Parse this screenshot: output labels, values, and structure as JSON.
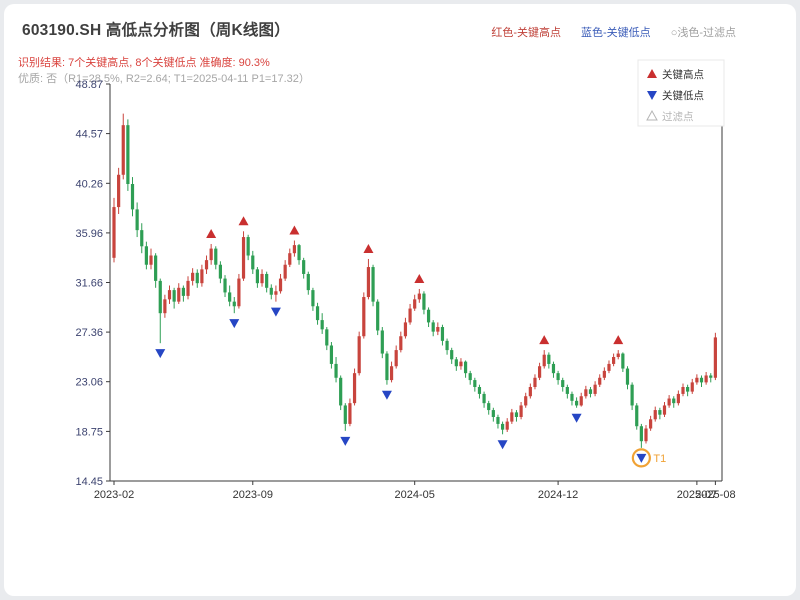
{
  "header": {
    "title": "603190.SH 高低点分析图（周K线图）",
    "legend_right": [
      {
        "label": "红色-关键高点",
        "color": "#bf4038"
      },
      {
        "label": "蓝色-关键低点",
        "color": "#3b5cb8"
      },
      {
        "label": "○浅色-过滤点",
        "color": "#9e9e9e"
      }
    ],
    "result_line": "识别结果: 7个关键高点, 8个关键低点  准确度: 90.3%",
    "result_color": "#d9433e",
    "quality_line": "优质: 否（R1=28.5%, R2=2.64; T1=2025-04-11 P1=17.32）"
  },
  "chart_data": {
    "type": "candlestick",
    "title": "603190.SH 高低点分析图（周K线图）",
    "frequency": "weekly",
    "ylim": [
      14.45,
      48.87
    ],
    "y_ticks": [
      14.45,
      18.75,
      23.06,
      27.36,
      31.66,
      35.96,
      40.26,
      44.57,
      48.87
    ],
    "x_ticks": [
      {
        "index": 0,
        "label": "2023-02"
      },
      {
        "index": 30,
        "label": "2023-09"
      },
      {
        "index": 65,
        "label": "2024-05"
      },
      {
        "index": 96,
        "label": "2024-12"
      },
      {
        "index": 126,
        "label": "2025-07"
      },
      {
        "index": 130,
        "label": "2025-08"
      }
    ],
    "in_chart_legend": [
      {
        "label": "关键高点",
        "marker": "up-triangle",
        "color": "#c92f2f",
        "text_color": "#333333"
      },
      {
        "label": "关键低点",
        "marker": "down-triangle",
        "color": "#2646c4",
        "text_color": "#333333"
      },
      {
        "label": "过滤点",
        "marker": "hollow-triangle",
        "color": "#b5b5b5",
        "text_color": "#b5b5b5"
      }
    ],
    "colors": {
      "up": "#c8443d",
      "down": "#2e9e54",
      "high_marker": "#c92f2f",
      "low_marker": "#2646c4",
      "t1_ring": "#f0a235",
      "axis": "#3a3a3a",
      "y_label": "#3d4470",
      "x_label": "#333333"
    },
    "candles": [
      [
        33.8,
        39.0,
        33.4,
        38.2
      ],
      [
        38.2,
        41.6,
        37.6,
        41.0
      ],
      [
        41.0,
        46.3,
        40.6,
        45.3
      ],
      [
        45.3,
        45.8,
        39.6,
        40.2
      ],
      [
        40.2,
        40.8,
        37.4,
        38.0
      ],
      [
        38.0,
        38.6,
        35.6,
        36.2
      ],
      [
        36.2,
        36.8,
        34.2,
        34.8
      ],
      [
        34.8,
        35.2,
        32.8,
        33.2
      ],
      [
        33.2,
        34.6,
        32.8,
        34.0
      ],
      [
        34.0,
        34.2,
        31.2,
        31.8
      ],
      [
        31.8,
        32.0,
        26.4,
        29.0
      ],
      [
        29.0,
        30.6,
        28.6,
        30.2
      ],
      [
        30.2,
        31.4,
        29.8,
        31.0
      ],
      [
        31.0,
        31.2,
        29.4,
        30.0
      ],
      [
        30.0,
        31.6,
        29.8,
        31.2
      ],
      [
        31.2,
        31.4,
        30.0,
        30.5
      ],
      [
        30.5,
        32.2,
        30.2,
        31.8
      ],
      [
        31.8,
        32.9,
        31.4,
        32.5
      ],
      [
        32.5,
        32.8,
        31.2,
        31.6
      ],
      [
        31.6,
        33.2,
        31.3,
        32.8
      ],
      [
        32.8,
        34.0,
        32.4,
        33.6
      ],
      [
        33.6,
        35.0,
        33.2,
        34.6
      ],
      [
        34.6,
        34.8,
        32.8,
        33.2
      ],
      [
        33.2,
        33.5,
        31.6,
        32.0
      ],
      [
        32.0,
        32.3,
        30.4,
        30.8
      ],
      [
        30.8,
        31.4,
        29.6,
        30.0
      ],
      [
        30.0,
        30.4,
        29.0,
        29.6
      ],
      [
        29.6,
        32.4,
        29.4,
        32.0
      ],
      [
        32.0,
        36.1,
        31.8,
        35.6
      ],
      [
        35.6,
        35.8,
        33.6,
        34.0
      ],
      [
        34.0,
        34.4,
        32.4,
        32.8
      ],
      [
        32.8,
        33.0,
        31.2,
        31.6
      ],
      [
        31.6,
        32.8,
        31.3,
        32.4
      ],
      [
        32.4,
        32.6,
        30.8,
        31.2
      ],
      [
        31.2,
        31.5,
        30.2,
        30.6
      ],
      [
        30.6,
        31.4,
        30.0,
        30.9
      ],
      [
        30.9,
        32.4,
        30.7,
        32.0
      ],
      [
        32.0,
        33.6,
        31.8,
        33.2
      ],
      [
        33.2,
        34.6,
        33.0,
        34.2
      ],
      [
        34.2,
        35.3,
        33.9,
        34.9
      ],
      [
        34.9,
        35.0,
        33.2,
        33.6
      ],
      [
        33.6,
        33.8,
        32.0,
        32.4
      ],
      [
        32.4,
        32.6,
        30.6,
        31.0
      ],
      [
        31.0,
        31.2,
        29.2,
        29.6
      ],
      [
        29.6,
        29.9,
        28.0,
        28.4
      ],
      [
        28.4,
        29.0,
        27.2,
        27.6
      ],
      [
        27.6,
        27.8,
        25.8,
        26.2
      ],
      [
        26.2,
        26.5,
        24.2,
        24.6
      ],
      [
        24.6,
        25.2,
        23.0,
        23.4
      ],
      [
        23.4,
        23.6,
        20.6,
        21.0
      ],
      [
        21.0,
        21.2,
        18.8,
        19.4
      ],
      [
        19.4,
        21.6,
        19.2,
        21.2
      ],
      [
        21.2,
        24.2,
        21.0,
        23.8
      ],
      [
        23.8,
        27.4,
        23.6,
        27.0
      ],
      [
        27.0,
        30.8,
        26.8,
        30.4
      ],
      [
        30.4,
        33.7,
        30.2,
        33.0
      ],
      [
        33.0,
        33.2,
        29.6,
        30.0
      ],
      [
        30.0,
        30.2,
        27.1,
        27.5
      ],
      [
        27.5,
        27.8,
        25.1,
        25.5
      ],
      [
        25.5,
        25.7,
        22.8,
        23.2
      ],
      [
        23.2,
        24.8,
        23.0,
        24.4
      ],
      [
        24.4,
        26.2,
        24.2,
        25.8
      ],
      [
        25.8,
        27.4,
        25.6,
        27.0
      ],
      [
        27.0,
        28.6,
        26.8,
        28.2
      ],
      [
        28.2,
        29.8,
        28.0,
        29.4
      ],
      [
        29.4,
        30.6,
        29.2,
        30.2
      ],
      [
        30.2,
        31.1,
        29.9,
        30.7
      ],
      [
        30.7,
        30.9,
        28.9,
        29.3
      ],
      [
        29.3,
        29.5,
        27.8,
        28.2
      ],
      [
        28.2,
        28.4,
        27.0,
        27.4
      ],
      [
        27.4,
        28.2,
        27.1,
        27.8
      ],
      [
        27.8,
        28.0,
        26.2,
        26.6
      ],
      [
        26.6,
        26.8,
        25.4,
        25.8
      ],
      [
        25.8,
        26.0,
        24.6,
        25.0
      ],
      [
        25.0,
        25.2,
        24.0,
        24.4
      ],
      [
        24.4,
        25.1,
        24.1,
        24.8
      ],
      [
        24.8,
        24.9,
        23.4,
        23.8
      ],
      [
        23.8,
        24.0,
        22.8,
        23.2
      ],
      [
        23.2,
        23.4,
        22.2,
        22.6
      ],
      [
        22.6,
        22.8,
        21.6,
        22.0
      ],
      [
        22.0,
        22.2,
        20.8,
        21.2
      ],
      [
        21.2,
        21.4,
        20.2,
        20.6
      ],
      [
        20.6,
        20.8,
        19.6,
        20.0
      ],
      [
        20.0,
        20.2,
        19.0,
        19.4
      ],
      [
        19.4,
        19.6,
        18.5,
        18.9
      ],
      [
        18.9,
        19.9,
        18.7,
        19.6
      ],
      [
        19.6,
        20.7,
        19.4,
        20.4
      ],
      [
        20.4,
        20.6,
        19.6,
        20.0
      ],
      [
        20.0,
        21.3,
        19.8,
        21.0
      ],
      [
        21.0,
        22.1,
        20.8,
        21.8
      ],
      [
        21.8,
        22.9,
        21.6,
        22.6
      ],
      [
        22.6,
        23.7,
        22.4,
        23.4
      ],
      [
        23.4,
        24.7,
        23.2,
        24.4
      ],
      [
        24.4,
        25.8,
        24.2,
        25.4
      ],
      [
        25.4,
        25.6,
        24.2,
        24.6
      ],
      [
        24.6,
        24.8,
        23.4,
        23.8
      ],
      [
        23.8,
        24.0,
        22.8,
        23.2
      ],
      [
        23.2,
        23.4,
        22.2,
        22.6
      ],
      [
        22.6,
        22.8,
        21.6,
        22.0
      ],
      [
        22.0,
        22.2,
        21.0,
        21.4
      ],
      [
        21.4,
        21.7,
        20.8,
        21.0
      ],
      [
        21.0,
        22.1,
        20.9,
        21.8
      ],
      [
        21.8,
        22.7,
        21.6,
        22.4
      ],
      [
        22.4,
        22.6,
        21.7,
        22.0
      ],
      [
        22.0,
        23.1,
        21.8,
        22.8
      ],
      [
        22.8,
        23.7,
        22.6,
        23.4
      ],
      [
        23.4,
        24.3,
        23.2,
        24.0
      ],
      [
        24.0,
        24.9,
        23.8,
        24.6
      ],
      [
        24.6,
        25.5,
        24.4,
        25.2
      ],
      [
        25.2,
        25.8,
        25.0,
        25.5
      ],
      [
        25.5,
        25.6,
        23.9,
        24.2
      ],
      [
        24.2,
        24.4,
        22.4,
        22.8
      ],
      [
        22.8,
        23.0,
        20.6,
        21.0
      ],
      [
        21.0,
        21.2,
        18.9,
        19.2
      ],
      [
        19.2,
        19.4,
        17.32,
        17.9
      ],
      [
        17.9,
        19.3,
        17.7,
        19.0
      ],
      [
        19.0,
        20.1,
        18.8,
        19.8
      ],
      [
        19.8,
        20.9,
        19.6,
        20.6
      ],
      [
        20.6,
        20.8,
        19.8,
        20.2
      ],
      [
        20.2,
        21.3,
        20.0,
        21.0
      ],
      [
        21.0,
        21.9,
        20.8,
        21.6
      ],
      [
        21.6,
        21.8,
        20.8,
        21.2
      ],
      [
        21.2,
        22.3,
        21.0,
        22.0
      ],
      [
        22.0,
        22.9,
        21.8,
        22.6
      ],
      [
        22.6,
        22.8,
        21.8,
        22.2
      ],
      [
        22.2,
        23.3,
        22.0,
        23.0
      ],
      [
        23.0,
        23.7,
        22.8,
        23.4
      ],
      [
        23.4,
        23.6,
        22.6,
        23.0
      ],
      [
        23.0,
        23.9,
        22.8,
        23.6
      ],
      [
        23.6,
        23.8,
        23.0,
        23.4
      ],
      [
        23.4,
        27.3,
        23.2,
        26.9
      ]
    ],
    "key_highs": [
      {
        "index": 21,
        "price": 35.0
      },
      {
        "index": 28,
        "price": 36.1
      },
      {
        "index": 39,
        "price": 35.3
      },
      {
        "index": 55,
        "price": 33.7
      },
      {
        "index": 66,
        "price": 31.1
      },
      {
        "index": 93,
        "price": 25.8
      },
      {
        "index": 109,
        "price": 25.8
      }
    ],
    "key_lows": [
      {
        "index": 10,
        "price": 26.4
      },
      {
        "index": 26,
        "price": 29.0
      },
      {
        "index": 35,
        "price": 30.0
      },
      {
        "index": 50,
        "price": 18.8
      },
      {
        "index": 59,
        "price": 22.8
      },
      {
        "index": 84,
        "price": 18.5
      },
      {
        "index": 100,
        "price": 20.8
      },
      {
        "index": 114,
        "price": 17.32
      }
    ],
    "t1": {
      "index": 114,
      "price": 17.32,
      "label": "T1",
      "date": "2025-04-11"
    },
    "filtered_points": []
  }
}
